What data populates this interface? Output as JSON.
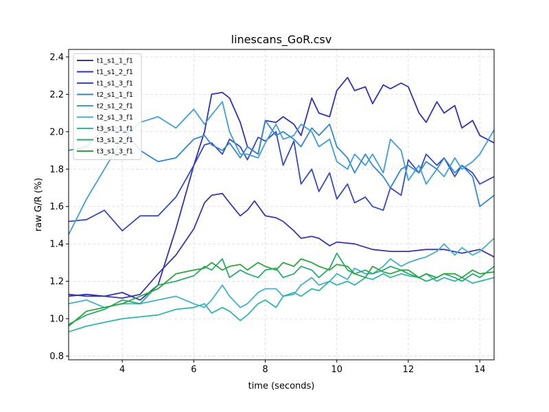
{
  "chart_data": {
    "type": "line",
    "title": "linescans_GoR.csv",
    "xlabel": "time (seconds)",
    "ylabel": "raw G/R (%)",
    "xlim": [
      2.5,
      14.4
    ],
    "ylim": [
      0.78,
      2.44
    ],
    "xticks": [
      4,
      6,
      8,
      10,
      12,
      14
    ],
    "yticks": [
      0.8,
      1.0,
      1.2,
      1.4,
      1.6,
      1.8,
      2.0,
      2.2,
      2.4
    ],
    "grid": true,
    "legend_position": "top-left",
    "series": [
      {
        "name": "t1_s1_1_f1",
        "color": "#3a32b8",
        "x": [
          2.5,
          3.0,
          3.5,
          4.0,
          4.5,
          5.0,
          5.5,
          6.0,
          6.3,
          6.5,
          6.8,
          7.0,
          7.3,
          7.5,
          7.7,
          8.0,
          8.3,
          8.5,
          8.8,
          9.0,
          9.3,
          9.5,
          9.8,
          10.0,
          10.5,
          11.0,
          11.5,
          12.0,
          12.5,
          13.0,
          13.5,
          14.0,
          14.4
        ],
        "y": [
          1.13,
          1.12,
          1.12,
          1.11,
          1.13,
          1.24,
          1.34,
          1.48,
          1.62,
          1.66,
          1.67,
          1.62,
          1.55,
          1.58,
          1.63,
          1.55,
          1.54,
          1.52,
          1.47,
          1.43,
          1.44,
          1.43,
          1.39,
          1.41,
          1.4,
          1.37,
          1.36,
          1.36,
          1.37,
          1.37,
          1.35,
          1.37,
          1.33
        ]
      },
      {
        "name": "t1_s1_2_f1",
        "color": "#2f2fc4",
        "x": [
          2.5,
          3.0,
          3.5,
          4.0,
          4.5,
          5.0,
          5.5,
          6.0,
          6.3,
          6.5,
          6.8,
          7.0,
          7.3,
          7.5,
          7.8,
          8.0,
          8.3,
          8.5,
          8.8,
          9.0,
          9.3,
          9.5,
          9.8,
          10.0,
          10.3,
          10.5,
          10.8,
          11.0,
          11.3,
          11.5,
          11.8,
          12.0,
          12.3,
          12.5,
          12.8,
          13.0,
          13.3,
          13.5,
          13.8,
          14.0,
          14.4
        ],
        "y": [
          1.12,
          1.13,
          1.12,
          1.14,
          1.1,
          1.18,
          1.48,
          1.82,
          2.0,
          2.2,
          2.21,
          2.18,
          2.05,
          1.92,
          1.88,
          2.06,
          2.05,
          2.08,
          2.04,
          1.98,
          2.18,
          2.1,
          2.08,
          2.22,
          2.29,
          2.22,
          2.24,
          2.15,
          2.25,
          2.23,
          2.26,
          2.24,
          2.1,
          2.05,
          2.16,
          2.1,
          2.14,
          2.02,
          2.06,
          1.98,
          1.94
        ]
      },
      {
        "name": "t1_s1_3_f1",
        "color": "#3347d0",
        "x": [
          2.5,
          3.0,
          3.5,
          4.0,
          4.5,
          5.0,
          5.5,
          6.0,
          6.3,
          6.5,
          6.8,
          7.0,
          7.3,
          7.5,
          7.8,
          8.0,
          8.3,
          8.5,
          8.8,
          9.0,
          9.3,
          9.5,
          9.8,
          10.0,
          10.3,
          10.5,
          10.8,
          11.0,
          11.3,
          11.5,
          11.8,
          12.0,
          12.3,
          12.5,
          12.8,
          13.0,
          13.3,
          13.5,
          13.8,
          14.0,
          14.4
        ],
        "y": [
          1.52,
          1.53,
          1.58,
          1.47,
          1.55,
          1.55,
          1.65,
          1.82,
          1.93,
          1.94,
          1.88,
          1.96,
          1.92,
          1.85,
          1.97,
          1.95,
          2.0,
          1.82,
          1.95,
          1.72,
          1.8,
          1.68,
          1.78,
          1.64,
          1.72,
          1.62,
          1.65,
          1.6,
          1.58,
          1.7,
          1.66,
          1.85,
          1.78,
          1.88,
          1.82,
          1.86,
          1.76,
          1.82,
          1.78,
          1.72,
          1.76
        ]
      },
      {
        "name": "t2_s1_1_f1",
        "color": "#2f86d6",
        "x": [
          2.5,
          3.0,
          3.5,
          4.0,
          4.5,
          5.0,
          5.5,
          6.0,
          6.3,
          6.5,
          6.8,
          7.0,
          7.3,
          7.5,
          7.8,
          8.0,
          8.3,
          8.5,
          8.8,
          9.0,
          9.3,
          9.5,
          9.8,
          10.0,
          10.3,
          10.5,
          10.8,
          11.0,
          11.3,
          11.5,
          11.8,
          12.0,
          12.3,
          12.5,
          12.8,
          13.0,
          13.3,
          13.5,
          13.8,
          14.0,
          14.4
        ],
        "y": [
          1.9,
          1.92,
          2.02,
          2.02,
          1.9,
          1.84,
          1.86,
          1.96,
          1.98,
          1.93,
          1.9,
          1.94,
          1.86,
          1.92,
          1.88,
          2.06,
          1.98,
          2.0,
          1.96,
          1.92,
          2.02,
          1.98,
          2.04,
          1.92,
          1.86,
          1.78,
          1.88,
          1.82,
          1.76,
          1.7,
          1.8,
          1.82,
          1.78,
          1.84,
          1.8,
          1.86,
          1.78,
          1.82,
          1.76,
          1.6,
          1.66
        ]
      },
      {
        "name": "t2_s1_2_f1",
        "color": "#3b9ee0",
        "x": [
          2.5,
          3.0,
          3.5,
          4.0,
          4.5,
          5.0,
          5.5,
          6.0,
          6.3,
          6.5,
          6.8,
          7.0,
          7.3,
          7.5,
          7.8,
          8.0,
          8.3,
          8.5,
          8.8,
          9.0,
          9.3,
          9.5,
          9.8,
          10.0,
          10.3,
          10.5,
          10.8,
          11.0,
          11.3,
          11.5,
          11.8,
          12.0,
          12.3,
          12.5,
          12.8,
          13.0,
          13.3,
          13.5,
          13.8,
          14.0,
          14.4
        ],
        "y": [
          1.45,
          1.64,
          1.8,
          1.96,
          2.05,
          2.08,
          2.02,
          2.12,
          2.04,
          2.09,
          2.16,
          2.0,
          1.88,
          1.88,
          1.86,
          1.94,
          2.04,
          1.96,
          1.98,
          2.04,
          2.0,
          1.92,
          1.96,
          1.84,
          1.8,
          1.88,
          1.82,
          1.88,
          1.78,
          1.96,
          1.9,
          1.74,
          1.82,
          1.72,
          1.8,
          1.76,
          1.86,
          1.8,
          1.84,
          1.88,
          2.01
        ]
      },
      {
        "name": "t2_s1_3_f1",
        "color": "#3fb0d0",
        "x": [
          2.5,
          3.0,
          3.5,
          4.0,
          4.5,
          5.0,
          5.5,
          6.0,
          6.3,
          6.5,
          6.8,
          7.0,
          7.3,
          7.5,
          7.8,
          8.0,
          8.3,
          8.5,
          8.8,
          9.0,
          9.3,
          9.5,
          9.8,
          10.0,
          10.3,
          10.5,
          10.8,
          11.0,
          11.3,
          11.5,
          11.8,
          12.0,
          12.3,
          12.5,
          12.8,
          13.0,
          13.3,
          13.5,
          13.8,
          14.0,
          14.4
        ],
        "y": [
          1.08,
          1.1,
          1.06,
          1.08,
          1.08,
          1.1,
          1.12,
          1.08,
          1.06,
          1.1,
          1.18,
          1.12,
          1.06,
          1.08,
          1.14,
          1.16,
          1.16,
          1.12,
          1.13,
          1.18,
          1.22,
          1.18,
          1.2,
          1.24,
          1.21,
          1.27,
          1.24,
          1.24,
          1.28,
          1.32,
          1.28,
          1.3,
          1.32,
          1.33,
          1.36,
          1.4,
          1.34,
          1.38,
          1.34,
          1.36,
          1.43
        ]
      },
      {
        "name": "t3_s1_1_f1",
        "color": "#2ab8b0",
        "x": [
          2.5,
          3.0,
          3.5,
          4.0,
          4.5,
          5.0,
          5.5,
          6.0,
          6.3,
          6.5,
          6.8,
          7.0,
          7.3,
          7.5,
          7.8,
          8.0,
          8.3,
          8.5,
          8.8,
          9.0,
          9.3,
          9.5,
          9.8,
          10.0,
          10.3,
          10.5,
          10.8,
          11.0,
          11.3,
          11.5,
          11.8,
          12.0,
          12.3,
          12.5,
          12.8,
          13.0,
          13.3,
          13.5,
          13.8,
          14.0,
          14.4
        ],
        "y": [
          0.93,
          0.96,
          0.98,
          1.0,
          1.01,
          1.02,
          1.05,
          1.06,
          1.08,
          1.03,
          1.06,
          1.04,
          0.99,
          1.02,
          1.08,
          1.1,
          1.06,
          1.12,
          1.14,
          1.12,
          1.16,
          1.15,
          1.2,
          1.18,
          1.2,
          1.18,
          1.22,
          1.21,
          1.24,
          1.22,
          1.24,
          1.23,
          1.22,
          1.24,
          1.2,
          1.22,
          1.2,
          1.22,
          1.19,
          1.2,
          1.22
        ]
      },
      {
        "name": "t3_s1_2_f1",
        "color": "#23ad6e",
        "x": [
          2.5,
          3.0,
          3.5,
          4.0,
          4.5,
          5.0,
          5.5,
          6.0,
          6.3,
          6.5,
          6.8,
          7.0,
          7.3,
          7.5,
          7.8,
          8.0,
          8.3,
          8.5,
          8.8,
          9.0,
          9.3,
          9.5,
          9.8,
          10.0,
          10.3,
          10.5,
          10.8,
          11.0,
          11.3,
          11.5,
          11.8,
          12.0,
          12.3,
          12.5,
          12.8,
          13.0,
          13.3,
          13.5,
          13.8,
          14.0,
          14.4
        ],
        "y": [
          0.97,
          1.02,
          1.05,
          1.1,
          1.08,
          1.18,
          1.2,
          1.23,
          1.28,
          1.26,
          1.32,
          1.22,
          1.26,
          1.24,
          1.22,
          1.26,
          1.27,
          1.22,
          1.24,
          1.28,
          1.26,
          1.22,
          1.27,
          1.35,
          1.26,
          1.24,
          1.26,
          1.24,
          1.26,
          1.28,
          1.26,
          1.24,
          1.22,
          1.2,
          1.22,
          1.24,
          1.22,
          1.2,
          1.24,
          1.22,
          1.28
        ]
      },
      {
        "name": "t3_s1_3_f1",
        "color": "#2aa838",
        "x": [
          2.5,
          3.0,
          3.5,
          4.0,
          4.5,
          5.0,
          5.5,
          6.0,
          6.3,
          6.5,
          6.8,
          7.0,
          7.3,
          7.5,
          7.8,
          8.0,
          8.3,
          8.5,
          8.8,
          9.0,
          9.3,
          9.5,
          9.8,
          10.0,
          10.3,
          10.5,
          10.8,
          11.0,
          11.3,
          11.5,
          11.8,
          12.0,
          12.3,
          12.5,
          12.8,
          13.0,
          13.3,
          13.5,
          13.8,
          14.0,
          14.4
        ],
        "y": [
          0.96,
          1.04,
          1.06,
          1.08,
          1.12,
          1.16,
          1.24,
          1.26,
          1.27,
          1.3,
          1.26,
          1.28,
          1.29,
          1.26,
          1.3,
          1.28,
          1.26,
          1.3,
          1.28,
          1.32,
          1.3,
          1.28,
          1.26,
          1.29,
          1.28,
          1.24,
          1.22,
          1.28,
          1.25,
          1.24,
          1.26,
          1.26,
          1.22,
          1.24,
          1.22,
          1.24,
          1.24,
          1.22,
          1.26,
          1.24,
          1.25
        ]
      }
    ]
  }
}
